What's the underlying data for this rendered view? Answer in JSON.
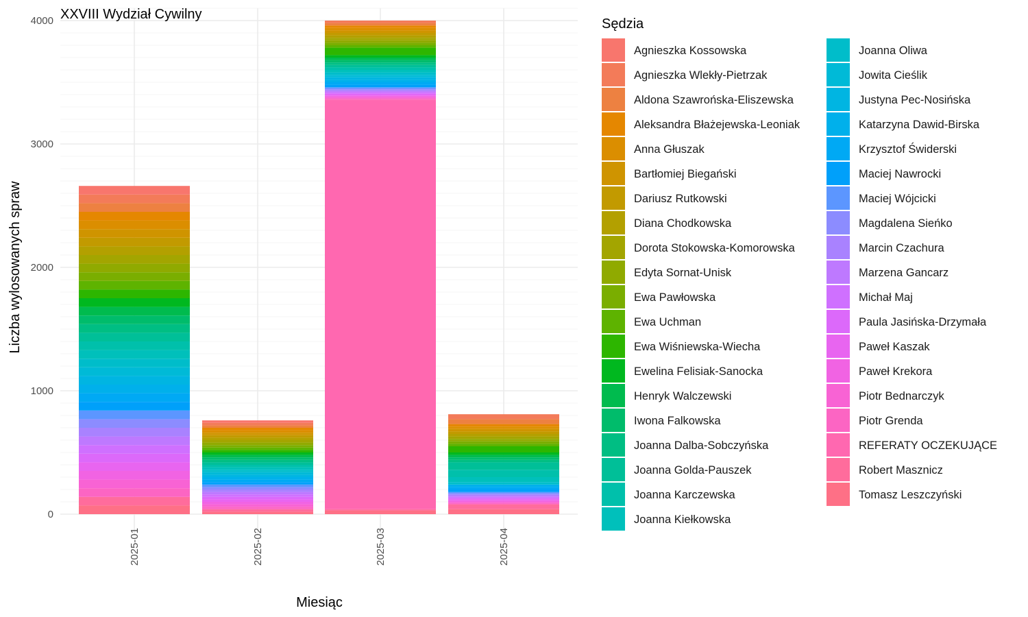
{
  "chart_data": {
    "type": "bar",
    "stacked": true,
    "title": "XXVIII Wydział Cywilny",
    "xlabel": "Miesiąc",
    "ylabel": "Liczba wylosowanych spraw",
    "categories": [
      "2025-01",
      "2025-02",
      "2025-03",
      "2025-04"
    ],
    "ylim": [
      0,
      4000
    ],
    "yticks": [
      0,
      1000,
      2000,
      3000,
      4000
    ],
    "grid": true,
    "legend": {
      "title": "Sędzia",
      "position": "right",
      "columns": 2
    },
    "series": [
      {
        "name": "Agnieszka Kossowska",
        "color": "#F8766D",
        "values": [
          70,
          20,
          0,
          0
        ]
      },
      {
        "name": "Agnieszka Wlekły-Pietrzak",
        "color": "#F37B59",
        "values": [
          70,
          20,
          20,
          40
        ]
      },
      {
        "name": "Aldona Szawrońska-Eliszewska",
        "color": "#ED8141",
        "values": [
          70,
          20,
          20,
          40
        ]
      },
      {
        "name": "Aleksandra Błażejewska-Leoniak",
        "color": "#E58700",
        "values": [
          70,
          20,
          20,
          20
        ]
      },
      {
        "name": "Anna Głuszak",
        "color": "#DB8E00",
        "values": [
          70,
          20,
          20,
          20
        ]
      },
      {
        "name": "Bartłomiej Biegański",
        "color": "#CF9400",
        "values": [
          70,
          20,
          20,
          20
        ]
      },
      {
        "name": "Dariusz Rutkowski",
        "color": "#C29A00",
        "values": [
          70,
          20,
          20,
          20
        ]
      },
      {
        "name": "Diana Chodkowska",
        "color": "#B3A000",
        "values": [
          70,
          20,
          20,
          20
        ]
      },
      {
        "name": "Dorota Stokowska-Komorowska",
        "color": "#A3A500",
        "values": [
          70,
          20,
          20,
          20
        ]
      },
      {
        "name": "Edyta Sornat-Unisk",
        "color": "#90AA00",
        "values": [
          70,
          20,
          20,
          20
        ]
      },
      {
        "name": "Ewa Pawłowska",
        "color": "#7AAE00",
        "values": [
          70,
          20,
          20,
          20
        ]
      },
      {
        "name": "Ewa Uchman",
        "color": "#5EB300",
        "values": [
          70,
          20,
          20,
          20
        ]
      },
      {
        "name": "Ewa Wiśniewska-Wiecha",
        "color": "#2DB600",
        "values": [
          70,
          20,
          60,
          50
        ]
      },
      {
        "name": "Ewelina Felisiak-Sanocka",
        "color": "#00B81F",
        "values": [
          70,
          20,
          20,
          20
        ]
      },
      {
        "name": "Henryk Walczewski",
        "color": "#00BB4E",
        "values": [
          70,
          20,
          20,
          20
        ]
      },
      {
        "name": "Iwona Falkowska",
        "color": "#00BC6B",
        "values": [
          70,
          20,
          20,
          20
        ]
      },
      {
        "name": "Joanna Dalba-Sobczyńska",
        "color": "#00BE83",
        "values": [
          70,
          20,
          20,
          20
        ]
      },
      {
        "name": "Joanna Golda-Pauszek",
        "color": "#00BF98",
        "values": [
          70,
          20,
          20,
          60
        ]
      },
      {
        "name": "Joanna Karczewska",
        "color": "#00C0AB",
        "values": [
          70,
          20,
          20,
          60
        ]
      },
      {
        "name": "Joanna Kiełkowska",
        "color": "#00C0BB",
        "values": [
          70,
          20,
          20,
          40
        ]
      },
      {
        "name": "Joanna Oliwa",
        "color": "#00BDCA",
        "values": [
          70,
          20,
          20,
          20
        ]
      },
      {
        "name": "Jowita Cieślik",
        "color": "#00BAD7",
        "values": [
          70,
          20,
          20,
          0
        ]
      },
      {
        "name": "Justyna Pec-Nosińska",
        "color": "#00B5E2",
        "values": [
          70,
          20,
          20,
          0
        ]
      },
      {
        "name": "Katarzyna Dawid-Birska",
        "color": "#00B0EB",
        "values": [
          70,
          20,
          20,
          20
        ]
      },
      {
        "name": "Krzysztof Świderski",
        "color": "#00A9F4",
        "values": [
          70,
          20,
          20,
          20
        ]
      },
      {
        "name": "Maciej Nawrocki",
        "color": "#00A0FA",
        "values": [
          70,
          20,
          20,
          20
        ]
      },
      {
        "name": "Maciej Wójcicki",
        "color": "#5C96FF",
        "values": [
          70,
          20,
          10,
          10
        ]
      },
      {
        "name": "Magdalena Sieńko",
        "color": "#8C8CFF",
        "values": [
          70,
          20,
          10,
          10
        ]
      },
      {
        "name": "Marcin Czachura",
        "color": "#A982FF",
        "values": [
          70,
          20,
          10,
          10
        ]
      },
      {
        "name": "Marzena Gancarz",
        "color": "#BE79FF",
        "values": [
          70,
          20,
          10,
          10
        ]
      },
      {
        "name": "Michał Maj",
        "color": "#CF70FF",
        "values": [
          70,
          20,
          10,
          10
        ]
      },
      {
        "name": "Paula Jasińska-Drzymała",
        "color": "#DC69FA",
        "values": [
          70,
          20,
          10,
          10
        ]
      },
      {
        "name": "Paweł Kaszak",
        "color": "#E865F0",
        "values": [
          70,
          20,
          10,
          10
        ]
      },
      {
        "name": "Paweł Krekora",
        "color": "#F163E3",
        "values": [
          70,
          20,
          10,
          10
        ]
      },
      {
        "name": "Piotr Bednarczyk",
        "color": "#F863D4",
        "values": [
          70,
          20,
          10,
          10
        ]
      },
      {
        "name": "Piotr Grenda",
        "color": "#FC65C3",
        "values": [
          70,
          20,
          10,
          10
        ]
      },
      {
        "name": "REFERATY OCZEKUJĄCE",
        "color": "#FF68B0",
        "values": [
          0,
          0,
          3320,
          0
        ]
      },
      {
        "name": "Robert Masznicz",
        "color": "#FF6C9C",
        "values": [
          70,
          20,
          10,
          40
        ]
      },
      {
        "name": "Tomasz Leszczyński",
        "color": "#FE7086",
        "values": [
          70,
          20,
          30,
          40
        ]
      }
    ]
  }
}
